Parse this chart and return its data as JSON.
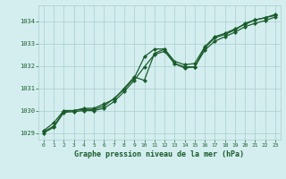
{
  "title": "Graphe pression niveau de la mer (hPa)",
  "bg_color": "#d4eef0",
  "grid_color": "#aacccc",
  "line_color": "#1a5c2a",
  "marker_color": "#1a5c2a",
  "xlim": [
    -0.5,
    23.5
  ],
  "ylim": [
    1028.7,
    1034.7
  ],
  "yticks": [
    1029,
    1030,
    1031,
    1032,
    1033,
    1034
  ],
  "xticks": [
    0,
    1,
    2,
    3,
    4,
    5,
    6,
    7,
    8,
    9,
    10,
    11,
    12,
    13,
    14,
    15,
    16,
    17,
    18,
    19,
    20,
    21,
    22,
    23
  ],
  "series1_x": [
    0,
    1,
    2,
    3,
    4,
    5,
    6,
    7,
    8,
    9,
    10,
    11,
    12,
    13,
    14,
    15,
    16,
    17,
    18,
    19,
    20,
    21,
    22,
    23
  ],
  "series1_y": [
    1029.1,
    1029.45,
    1030.0,
    1030.0,
    1030.1,
    1030.1,
    1030.3,
    1030.5,
    1031.0,
    1031.5,
    1031.35,
    1032.55,
    1032.75,
    1032.1,
    1031.95,
    1031.95,
    1032.8,
    1033.25,
    1033.4,
    1033.6,
    1033.9,
    1034.05,
    1034.15,
    1034.3
  ],
  "series2_x": [
    0,
    1,
    2,
    3,
    4,
    5,
    6,
    7,
    8,
    9,
    10,
    11,
    12,
    13,
    14,
    15,
    16,
    17,
    18,
    19,
    20,
    21,
    22,
    23
  ],
  "series2_y": [
    1029.05,
    1029.3,
    1029.95,
    1030.0,
    1030.05,
    1030.05,
    1030.2,
    1030.55,
    1030.95,
    1031.45,
    1032.4,
    1032.75,
    1032.75,
    1032.2,
    1032.05,
    1032.1,
    1032.85,
    1033.3,
    1033.45,
    1033.65,
    1033.85,
    1034.05,
    1034.15,
    1034.25
  ],
  "series3_x": [
    0,
    1,
    2,
    3,
    4,
    5,
    6,
    7,
    8,
    9,
    10,
    11,
    12,
    13,
    14,
    15,
    16,
    17,
    18,
    19,
    20,
    21,
    22,
    23
  ],
  "series3_y": [
    1029.0,
    1029.25,
    1029.92,
    1029.95,
    1030.0,
    1030.0,
    1030.1,
    1030.4,
    1030.85,
    1031.35,
    1031.95,
    1032.5,
    1032.65,
    1032.1,
    1031.9,
    1031.95,
    1032.7,
    1033.1,
    1033.3,
    1033.5,
    1033.75,
    1033.9,
    1034.02,
    1034.18
  ]
}
